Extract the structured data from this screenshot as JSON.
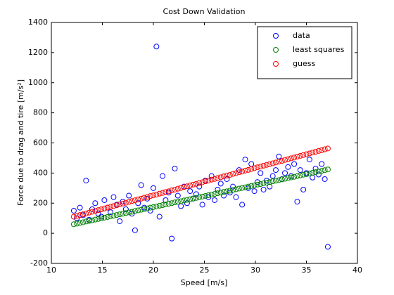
{
  "chart_data": {
    "type": "scatter",
    "title": "Cost Down Validation",
    "xlabel": "Speed [m/s]",
    "ylabel": "Force due to drag and tire [m/s²]",
    "xlim": [
      10,
      40
    ],
    "xticks": [
      10,
      15,
      20,
      25,
      30,
      35,
      40
    ],
    "ylim": [
      -200,
      1400
    ],
    "yticks": [
      -200,
      0,
      200,
      400,
      600,
      800,
      1000,
      1200,
      1400
    ],
    "legend": "northeast",
    "grid": false,
    "x": [
      12.2,
      12.5,
      12.8,
      13.1,
      13.4,
      13.7,
      14.0,
      14.3,
      14.6,
      14.9,
      15.2,
      15.5,
      15.8,
      16.1,
      16.4,
      16.7,
      17.0,
      17.3,
      17.6,
      17.9,
      18.2,
      18.5,
      18.8,
      19.1,
      19.4,
      19.7,
      20.0,
      20.3,
      20.6,
      20.9,
      21.2,
      21.5,
      21.8,
      22.1,
      22.4,
      22.7,
      23.0,
      23.3,
      23.6,
      23.9,
      24.2,
      24.5,
      24.8,
      25.1,
      25.4,
      25.7,
      26.0,
      26.3,
      26.6,
      26.9,
      27.2,
      27.5,
      27.8,
      28.1,
      28.4,
      28.7,
      29.0,
      29.3,
      29.6,
      29.9,
      30.2,
      30.5,
      30.8,
      31.1,
      31.4,
      31.7,
      32.0,
      32.3,
      32.6,
      32.9,
      33.2,
      33.5,
      33.8,
      34.1,
      34.4,
      34.7,
      35.0,
      35.3,
      35.6,
      35.9,
      36.2,
      36.5,
      36.8,
      37.1
    ],
    "series": [
      {
        "name": "data",
        "color": "#0000ff",
        "values": [
          150,
          100,
          170,
          120,
          350,
          90,
          160,
          200,
          130,
          110,
          220,
          170,
          140,
          240,
          190,
          80,
          210,
          160,
          250,
          130,
          20,
          200,
          320,
          170,
          230,
          150,
          300,
          1240,
          110,
          380,
          220,
          270,
          -35,
          430,
          250,
          180,
          310,
          200,
          280,
          230,
          260,
          310,
          190,
          350,
          240,
          380,
          220,
          290,
          330,
          250,
          360,
          270,
          310,
          240,
          420,
          190,
          490,
          300,
          460,
          280,
          340,
          400,
          290,
          350,
          310,
          380,
          420,
          510,
          360,
          400,
          440,
          380,
          460,
          210,
          420,
          290,
          400,
          490,
          370,
          430,
          390,
          460,
          360,
          -90
        ]
      },
      {
        "name": "least squares",
        "color": "#008000",
        "values": [
          60,
          64,
          69,
          73,
          78,
          82,
          86,
          91,
          95,
          99,
          104,
          108,
          113,
          117,
          121,
          126,
          130,
          134,
          139,
          143,
          148,
          152,
          156,
          161,
          165,
          170,
          174,
          178,
          183,
          187,
          191,
          196,
          200,
          205,
          209,
          213,
          218,
          222,
          226,
          231,
          235,
          240,
          244,
          248,
          253,
          257,
          261,
          266,
          270,
          275,
          279,
          283,
          288,
          292,
          297,
          301,
          305,
          310,
          314,
          318,
          323,
          327,
          332,
          336,
          340,
          345,
          349,
          353,
          358,
          362,
          367,
          371,
          375,
          380,
          384,
          389,
          393,
          397,
          402,
          406,
          410,
          415,
          419,
          424
        ]
      },
      {
        "name": "guess",
        "color": "#ff0000",
        "values": [
          110,
          115,
          121,
          126,
          132,
          137,
          143,
          148,
          154,
          159,
          165,
          170,
          176,
          181,
          186,
          192,
          197,
          203,
          208,
          214,
          219,
          225,
          230,
          236,
          241,
          247,
          252,
          257,
          263,
          268,
          274,
          279,
          285,
          290,
          296,
          301,
          307,
          312,
          317,
          323,
          328,
          334,
          339,
          345,
          350,
          356,
          361,
          367,
          372,
          378,
          383,
          388,
          394,
          399,
          405,
          410,
          416,
          421,
          427,
          432,
          438,
          443,
          449,
          454,
          459,
          465,
          470,
          476,
          481,
          487,
          492,
          498,
          503,
          509,
          514,
          520,
          525,
          530,
          536,
          541,
          547,
          552,
          558,
          563
        ]
      }
    ]
  }
}
